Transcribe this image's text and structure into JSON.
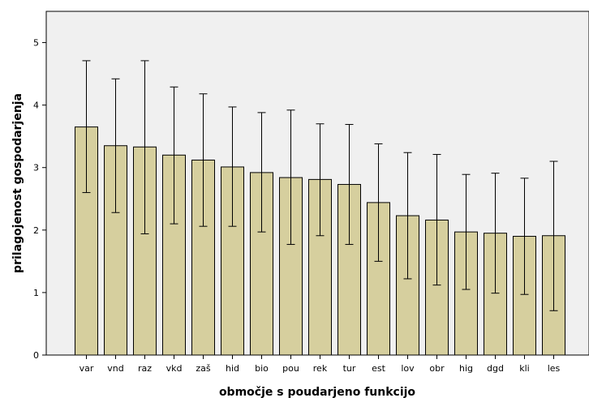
{
  "chart_data": {
    "type": "bar",
    "xlabel": "območje s poudarjeno funkcijo",
    "ylabel": "prilagojenost gospodarjenja",
    "ylim": [
      0,
      5.5
    ],
    "yticks": [
      0,
      1,
      2,
      3,
      4,
      5
    ],
    "grid": false,
    "categories": [
      "var",
      "vnd",
      "raz",
      "vkd",
      "zaš",
      "hid",
      "bio",
      "pou",
      "rek",
      "tur",
      "est",
      "lov",
      "obr",
      "hig",
      "dgd",
      "kli",
      "les"
    ],
    "values": [
      3.65,
      3.35,
      3.33,
      3.2,
      3.12,
      3.01,
      2.92,
      2.84,
      2.81,
      2.73,
      2.44,
      2.23,
      2.16,
      1.97,
      1.95,
      1.9,
      1.91
    ],
    "error_low": [
      2.6,
      2.28,
      1.94,
      2.1,
      2.06,
      2.06,
      1.97,
      1.77,
      1.91,
      1.77,
      1.5,
      1.22,
      1.12,
      1.05,
      0.99,
      0.97,
      0.71
    ],
    "error_high": [
      4.71,
      4.42,
      4.71,
      4.29,
      4.18,
      3.97,
      3.88,
      3.92,
      3.7,
      3.69,
      3.38,
      3.24,
      3.21,
      2.89,
      2.91,
      2.83,
      3.1
    ],
    "colors": {
      "bar_fill": "#d6cf9e",
      "bar_stroke": "#000000",
      "plot_bg": "#f0f0f0",
      "error_bar": "#000000"
    }
  }
}
